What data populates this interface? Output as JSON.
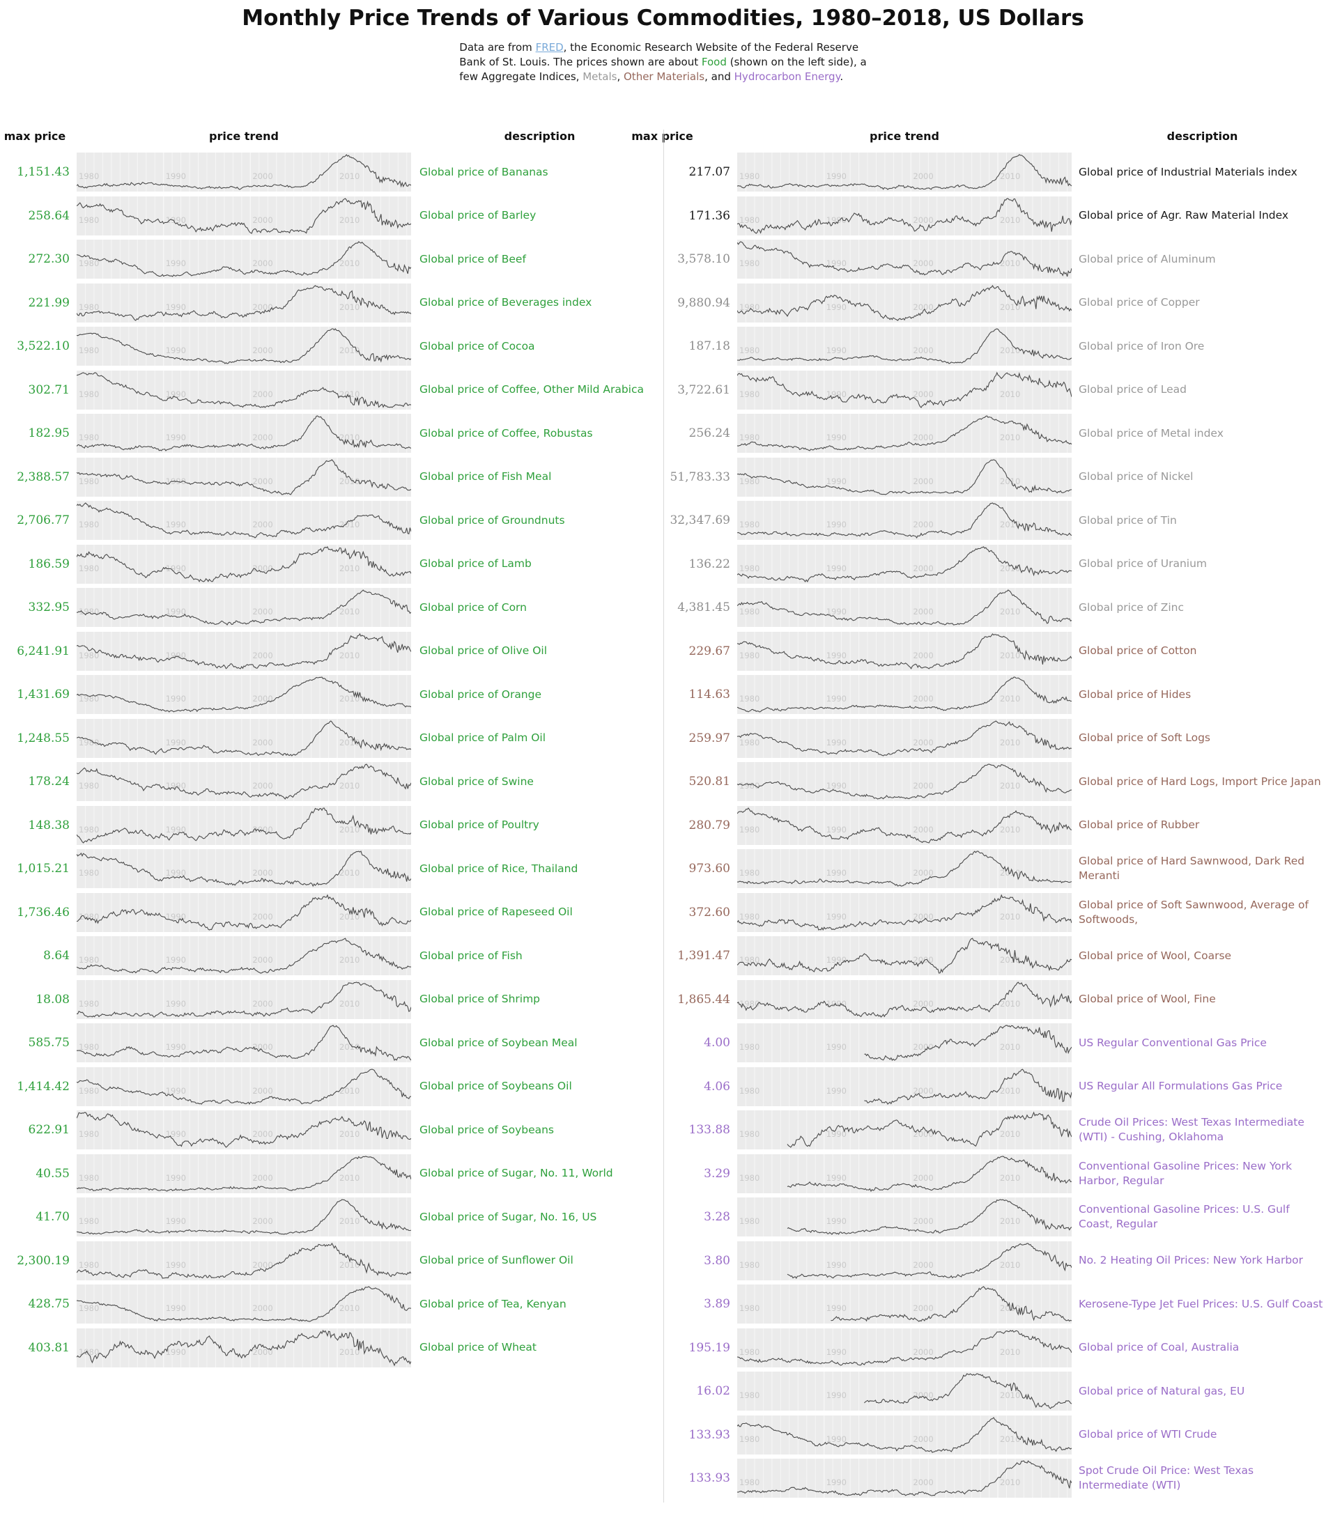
{
  "title": "Monthly Price Trends of Various Commodities, 1980–2018, US Dollars",
  "subtitle_lines": [
    [
      {
        "t": "Data are from "
      },
      {
        "t": "FRED",
        "k": "link",
        "link": true
      },
      {
        "t": ", the Economic Research Website of the Federal Reserve"
      }
    ],
    [
      {
        "t": "Bank of St. Louis. The prices shown are about "
      },
      {
        "t": "Food",
        "k": "food"
      },
      {
        "t": " (shown on the left side), a"
      }
    ],
    [
      {
        "t": "few Aggregate Indices, "
      },
      {
        "t": "Metals",
        "k": "metals"
      },
      {
        "t": ", "
      },
      {
        "t": "Other Materials",
        "k": "other"
      },
      {
        "t": ", and "
      },
      {
        "t": "Hydrocarbon Energy",
        "k": "energy"
      },
      {
        "t": "."
      }
    ]
  ],
  "headers": {
    "max_price": "max price",
    "price_trend": "price trend",
    "description": "description"
  },
  "palette": {
    "food": "#2fa03c",
    "aggregate": "#1a1a1a",
    "metals": "#999999",
    "other": "#96685c",
    "energy": "#9a6dc8",
    "link": "#7aaad9",
    "panel_bg": "#ebebeb",
    "grid_line": "#f6f6f6",
    "spark_line": "#4a4a4a",
    "year_label": "#c9c9c9",
    "divider": "#d9d9d9"
  },
  "chart_data": {
    "type": "line",
    "variant": "sparkline-small-multiples",
    "title": "Monthly Price Trends of Various Commodities, 1980–2018, US Dollars",
    "x_range": [
      1980,
      2018
    ],
    "x_ticks": [
      "1980",
      "1990",
      "2000",
      "2010"
    ],
    "grid": true,
    "columns": {
      "left": [
        {
          "max_price": "1,151.43",
          "description": "Global price of Bananas",
          "category": "food"
        },
        {
          "max_price": "258.64",
          "description": "Global price of Barley",
          "category": "food"
        },
        {
          "max_price": "272.30",
          "description": "Global price of Beef",
          "category": "food"
        },
        {
          "max_price": "221.99",
          "description": "Global price of Beverages index",
          "category": "food"
        },
        {
          "max_price": "3,522.10",
          "description": "Global price of Cocoa",
          "category": "food"
        },
        {
          "max_price": "302.71",
          "description": "Global price of Coffee, Other Mild Arabica",
          "category": "food"
        },
        {
          "max_price": "182.95",
          "description": "Global price of Coffee, Robustas",
          "category": "food"
        },
        {
          "max_price": "2,388.57",
          "description": "Global price of Fish Meal",
          "category": "food"
        },
        {
          "max_price": "2,706.77",
          "description": "Global price of Groundnuts",
          "category": "food"
        },
        {
          "max_price": "186.59",
          "description": "Global price of Lamb",
          "category": "food"
        },
        {
          "max_price": "332.95",
          "description": "Global price of Corn",
          "category": "food"
        },
        {
          "max_price": "6,241.91",
          "description": "Global price of Olive Oil",
          "category": "food"
        },
        {
          "max_price": "1,431.69",
          "description": "Global price of Orange",
          "category": "food"
        },
        {
          "max_price": "1,248.55",
          "description": "Global price of Palm Oil",
          "category": "food"
        },
        {
          "max_price": "178.24",
          "description": "Global price of Swine",
          "category": "food"
        },
        {
          "max_price": "148.38",
          "description": "Global price of Poultry",
          "category": "food"
        },
        {
          "max_price": "1,015.21",
          "description": "Global price of Rice, Thailand",
          "category": "food"
        },
        {
          "max_price": "1,736.46",
          "description": "Global price of Rapeseed Oil",
          "category": "food"
        },
        {
          "max_price": "8.64",
          "description": "Global price of Fish",
          "category": "food"
        },
        {
          "max_price": "18.08",
          "description": "Global price of Shrimp",
          "category": "food"
        },
        {
          "max_price": "585.75",
          "description": "Global price of Soybean Meal",
          "category": "food"
        },
        {
          "max_price": "1,414.42",
          "description": "Global price of Soybeans Oil",
          "category": "food"
        },
        {
          "max_price": "622.91",
          "description": "Global price of Soybeans",
          "category": "food"
        },
        {
          "max_price": "40.55",
          "description": "Global price of Sugar, No. 11, World",
          "category": "food"
        },
        {
          "max_price": "41.70",
          "description": "Global price of Sugar, No. 16, US",
          "category": "food"
        },
        {
          "max_price": "2,300.19",
          "description": "Global price of Sunflower Oil",
          "category": "food"
        },
        {
          "max_price": "428.75",
          "description": "Global price of Tea, Kenyan",
          "category": "food"
        },
        {
          "max_price": "403.81",
          "description": "Global price of Wheat",
          "category": "food"
        }
      ],
      "right": [
        {
          "max_price": "217.07",
          "description": "Global price of Industrial Materials index",
          "category": "aggregate"
        },
        {
          "max_price": "171.36",
          "description": "Global price of Agr. Raw Material Index",
          "category": "aggregate"
        },
        {
          "max_price": "3,578.10",
          "description": "Global price of Aluminum",
          "category": "metals"
        },
        {
          "max_price": "9,880.94",
          "description": "Global price of Copper",
          "category": "metals"
        },
        {
          "max_price": "187.18",
          "description": "Global price of Iron Ore",
          "category": "metals"
        },
        {
          "max_price": "3,722.61",
          "description": "Global price of Lead",
          "category": "metals"
        },
        {
          "max_price": "256.24",
          "description": "Global price of Metal index",
          "category": "metals"
        },
        {
          "max_price": "51,783.33",
          "description": "Global price of Nickel",
          "category": "metals"
        },
        {
          "max_price": "32,347.69",
          "description": "Global price of Tin",
          "category": "metals"
        },
        {
          "max_price": "136.22",
          "description": "Global price of Uranium",
          "category": "metals"
        },
        {
          "max_price": "4,381.45",
          "description": "Global price of Zinc",
          "category": "metals"
        },
        {
          "max_price": "229.67",
          "description": "Global price of Cotton",
          "category": "other"
        },
        {
          "max_price": "114.63",
          "description": "Global price of Hides",
          "category": "other"
        },
        {
          "max_price": "259.97",
          "description": "Global price of Soft Logs",
          "category": "other"
        },
        {
          "max_price": "520.81",
          "description": "Global price of Hard Logs, Import Price Japan",
          "category": "other"
        },
        {
          "max_price": "280.79",
          "description": "Global price of Rubber",
          "category": "other"
        },
        {
          "max_price": "973.60",
          "description": "Global price of Hard Sawnwood, Dark Red Meranti",
          "category": "other"
        },
        {
          "max_price": "372.60",
          "description": "Global price of Soft Sawnwood, Average of Softwoods,",
          "category": "other"
        },
        {
          "max_price": "1,391.47",
          "description": "Global price of Wool, Coarse",
          "category": "other"
        },
        {
          "max_price": "1,865.44",
          "description": "Global price of Wool, Fine",
          "category": "other"
        },
        {
          "max_price": "4.00",
          "description": "US Regular Conventional Gas Price",
          "category": "energy",
          "spark_start": 0.38
        },
        {
          "max_price": "4.06",
          "description": "US Regular All Formulations Gas Price",
          "category": "energy",
          "spark_start": 0.38
        },
        {
          "max_price": "133.88",
          "description": "Crude Oil Prices: West Texas Intermediate (WTI) - Cushing, Oklahoma",
          "category": "energy",
          "spark_start": 0.15
        },
        {
          "max_price": "3.29",
          "description": "Conventional Gasoline Prices: New York Harbor, Regular",
          "category": "energy",
          "spark_start": 0.15
        },
        {
          "max_price": "3.28",
          "description": "Conventional Gasoline Prices: U.S. Gulf Coast, Regular",
          "category": "energy",
          "spark_start": 0.15
        },
        {
          "max_price": "3.80",
          "description": "No. 2 Heating Oil Prices: New York Harbor",
          "category": "energy",
          "spark_start": 0.15
        },
        {
          "max_price": "3.89",
          "description": "Kerosene-Type Jet Fuel Prices: U.S. Gulf Coast",
          "category": "energy",
          "spark_start": 0.28
        },
        {
          "max_price": "195.19",
          "description": "Global price of Coal, Australia",
          "category": "energy"
        },
        {
          "max_price": "16.02",
          "description": "Global price of Natural gas, EU",
          "category": "energy",
          "spark_start": 0.38
        },
        {
          "max_price": "133.93",
          "description": "Global price of WTI Crude",
          "category": "energy"
        },
        {
          "max_price": "133.93",
          "description": "Spot Crude Oil Price: West Texas Intermediate (WTI)",
          "category": "energy"
        }
      ]
    }
  }
}
